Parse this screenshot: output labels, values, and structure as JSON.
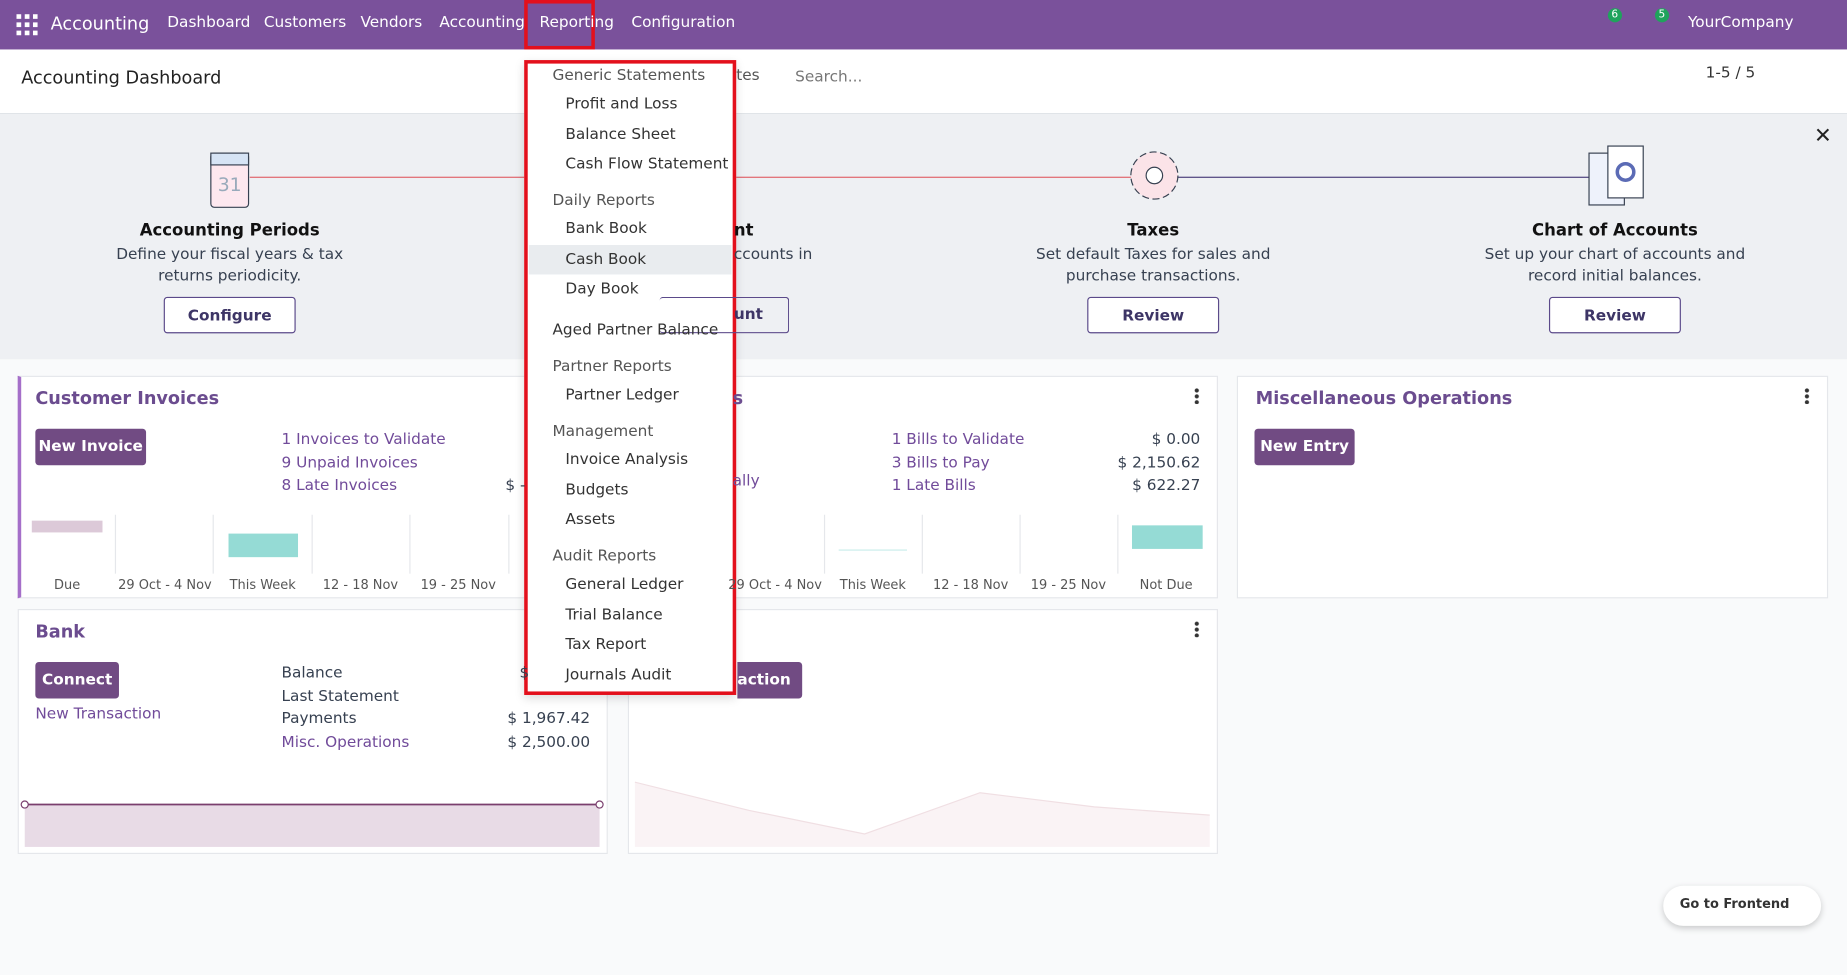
{
  "navbar": {
    "app": "Accounting",
    "menu": [
      "Dashboard",
      "Customers",
      "Vendors",
      "Accounting",
      "Reporting",
      "Configuration"
    ],
    "messages_badge": "6",
    "activities_badge": "5",
    "company": "YourCompany"
  },
  "control_panel": {
    "title": "Accounting Dashboard",
    "facet": "tes",
    "search_placeholder": "Search...",
    "pager": "1-5 / 5"
  },
  "onboarding": {
    "steps": [
      {
        "title": "Accounting Periods",
        "description": "Define your fiscal years & tax returns periodicity.",
        "button": "Configure"
      },
      {
        "title": "nt",
        "description": "ccounts in",
        "button": "unt"
      },
      {
        "title": "Taxes",
        "description": "Set default Taxes for sales and purchase transactions.",
        "button": "Review"
      },
      {
        "title": "Chart of Accounts",
        "description": "Set up your chart of accounts and record initial balances.",
        "button": "Review"
      }
    ]
  },
  "cards": {
    "customer_invoices": {
      "title": "Customer Invoices",
      "button": "New Invoice",
      "lines": [
        {
          "label": "1 Invoices to Validate"
        },
        {
          "label": "9 Unpaid Invoices"
        },
        {
          "label": "8 Late Invoices",
          "amount": "$ -"
        }
      ],
      "chart_labels": [
        "Due",
        "29 Oct - 4 Nov",
        "This Week",
        "12 - 18 Nov",
        "19 - 25 Nov"
      ]
    },
    "vendor_bills": {
      "title": "s",
      "link": "ally",
      "lines": [
        {
          "label": "1 Bills to Validate",
          "amount": "$ 0.00"
        },
        {
          "label": "3 Bills to Pay",
          "amount": "$ 2,150.62"
        },
        {
          "label": "1 Late Bills",
          "amount": "$ 622.27"
        }
      ],
      "chart_labels": [
        "29 Oct - 4 Nov",
        "This Week",
        "12 - 18 Nov",
        "19 - 25 Nov",
        "Not Due"
      ]
    },
    "miscellaneous": {
      "title": "Miscellaneous Operations",
      "button": "New Entry"
    },
    "bank": {
      "title": "Bank",
      "button": "Connect",
      "link": "New Transaction",
      "lines": [
        {
          "label": "Balance",
          "amount": "$"
        },
        {
          "label": "Last Statement"
        },
        {
          "label": "Payments",
          "amount": "$ 1,967.42"
        },
        {
          "label": "Misc. Operations",
          "amount": "$ 2,500.00"
        }
      ]
    },
    "cash": {
      "button": "action"
    }
  },
  "reporting_menu": {
    "sections": [
      {
        "header": "Generic Statements",
        "items": [
          "Profit and Loss",
          "Balance Sheet",
          "Cash Flow Statement"
        ]
      },
      {
        "header": "Daily Reports",
        "items": [
          "Bank Book",
          "Cash Book",
          "Day Book"
        ]
      },
      {
        "items": [
          "Aged Partner Balance"
        ]
      },
      {
        "header": "Partner Reports",
        "items": [
          "Partner Ledger"
        ]
      },
      {
        "header": "Management",
        "items": [
          "Invoice Analysis",
          "Budgets",
          "Assets"
        ]
      },
      {
        "header": "Audit Reports",
        "items": [
          "General Ledger",
          "Trial Balance",
          "Tax Report",
          "Journals Audit"
        ]
      }
    ]
  },
  "go_to_frontend": "Go to Frontend"
}
